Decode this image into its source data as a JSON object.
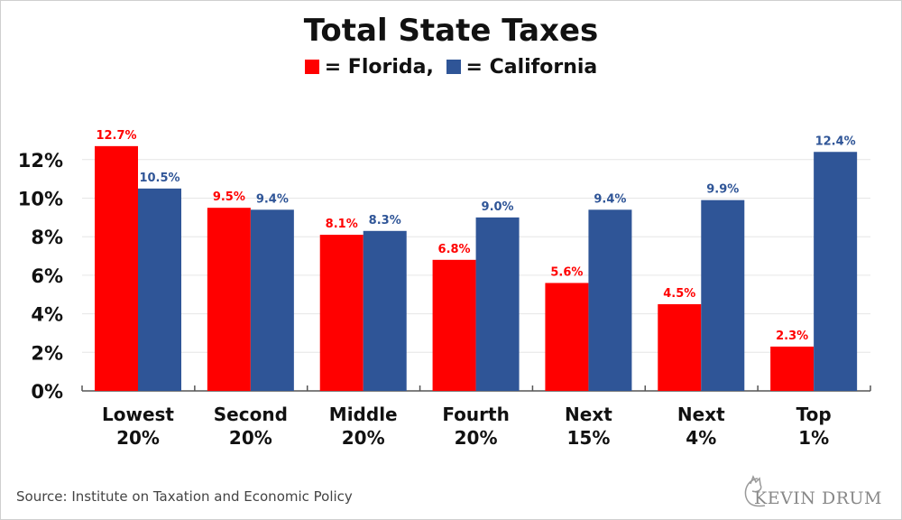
{
  "chart_data": {
    "type": "bar",
    "title": "Total State Taxes",
    "legend_text": {
      "florida": "= Florida,",
      "california": "= California"
    },
    "legend_placement": "top-center",
    "categories": [
      [
        "Lowest",
        "20%"
      ],
      [
        "Second",
        "20%"
      ],
      [
        "Middle",
        "20%"
      ],
      [
        "Fourth",
        "20%"
      ],
      [
        "Next",
        "15%"
      ],
      [
        "Next",
        "4%"
      ],
      [
        "Top",
        "1%"
      ]
    ],
    "series": [
      {
        "name": "Florida",
        "color": "#ff0000",
        "values": [
          12.7,
          9.5,
          8.1,
          6.8,
          5.6,
          4.5,
          2.3
        ],
        "labels": [
          "12.7%",
          "9.5%",
          "8.1%",
          "6.8%",
          "5.6%",
          "4.5%",
          "2.3%"
        ]
      },
      {
        "name": "California",
        "color": "#2f5597",
        "values": [
          10.5,
          9.4,
          8.3,
          9.0,
          9.4,
          9.9,
          12.4
        ],
        "labels": [
          "10.5%",
          "9.4%",
          "8.3%",
          "9.0%",
          "9.4%",
          "9.9%",
          "12.4%"
        ]
      }
    ],
    "yticks": [
      "0%",
      "2%",
      "4%",
      "6%",
      "8%",
      "10%",
      "12%"
    ],
    "ylim": [
      0,
      12.8
    ],
    "grid": true
  },
  "source": "Source: Institute on Taxation and Economic Policy",
  "logo_text": "KEVIN DRUM"
}
